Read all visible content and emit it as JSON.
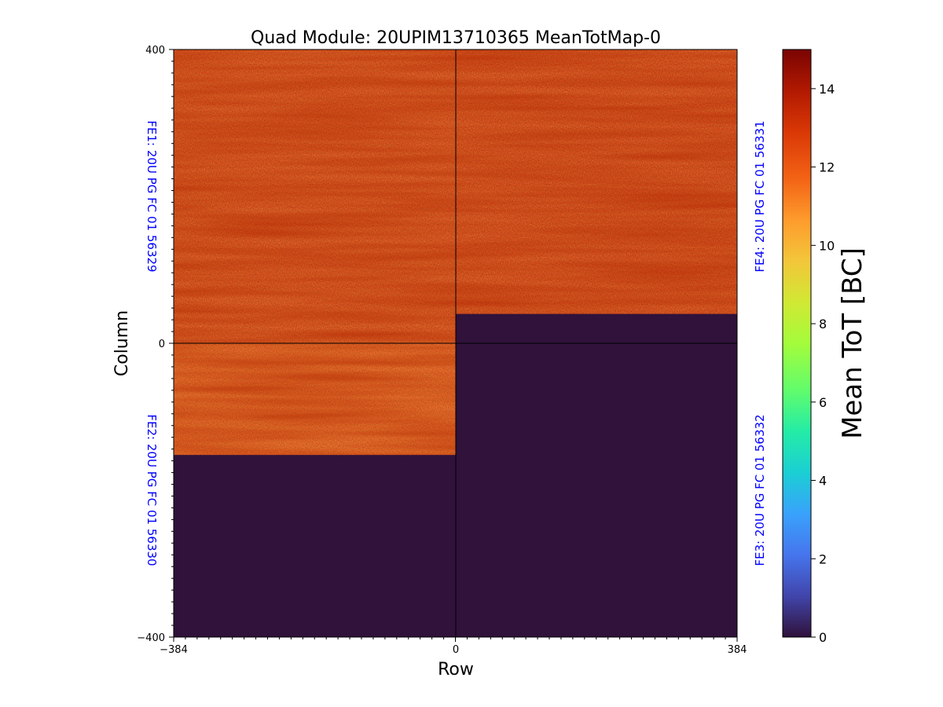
{
  "chart_data": {
    "type": "heatmap",
    "title": "Quad Module: 20UPIM13710365 MeanTotMap-0",
    "xlabel": "Row",
    "ylabel": "Column",
    "xlim": [
      -384,
      384
    ],
    "ylim": [
      -400,
      400
    ],
    "x_ticks": [
      "−384",
      "0",
      "384"
    ],
    "y_ticks": [
      "400",
      "0",
      "−400"
    ],
    "colorbar": {
      "label": "Mean ToT [BC]",
      "range": [
        0,
        15
      ],
      "ticks": [
        "0",
        "2",
        "4",
        "6",
        "8",
        "10",
        "12",
        "14"
      ],
      "colormap": "turbo"
    },
    "chips": [
      {
        "label": "FE1: 20U PG FC 01 56329",
        "x_range": [
          -384,
          0
        ],
        "y_range": [
          0,
          400
        ],
        "filled_y_range": [
          0,
          400
        ],
        "mean_tot_typical": 12.8
      },
      {
        "label": "FE2: 20U PG FC 01 56330",
        "x_range": [
          -384,
          0
        ],
        "y_range": [
          -400,
          0
        ],
        "filled_y_range": [
          -152,
          0
        ],
        "mean_tot_typical": 12.2
      },
      {
        "label": "FE3: 20U PG FC 01 56332",
        "x_range": [
          0,
          384
        ],
        "y_range": [
          -400,
          0
        ],
        "filled_y_range": null,
        "mean_tot_typical": 0
      },
      {
        "label": "FE4: 20U PG FC 01 56331",
        "x_range": [
          0,
          384
        ],
        "y_range": [
          0,
          400
        ],
        "filled_y_range": [
          40,
          400
        ],
        "mean_tot_typical": 12.9
      }
    ]
  }
}
